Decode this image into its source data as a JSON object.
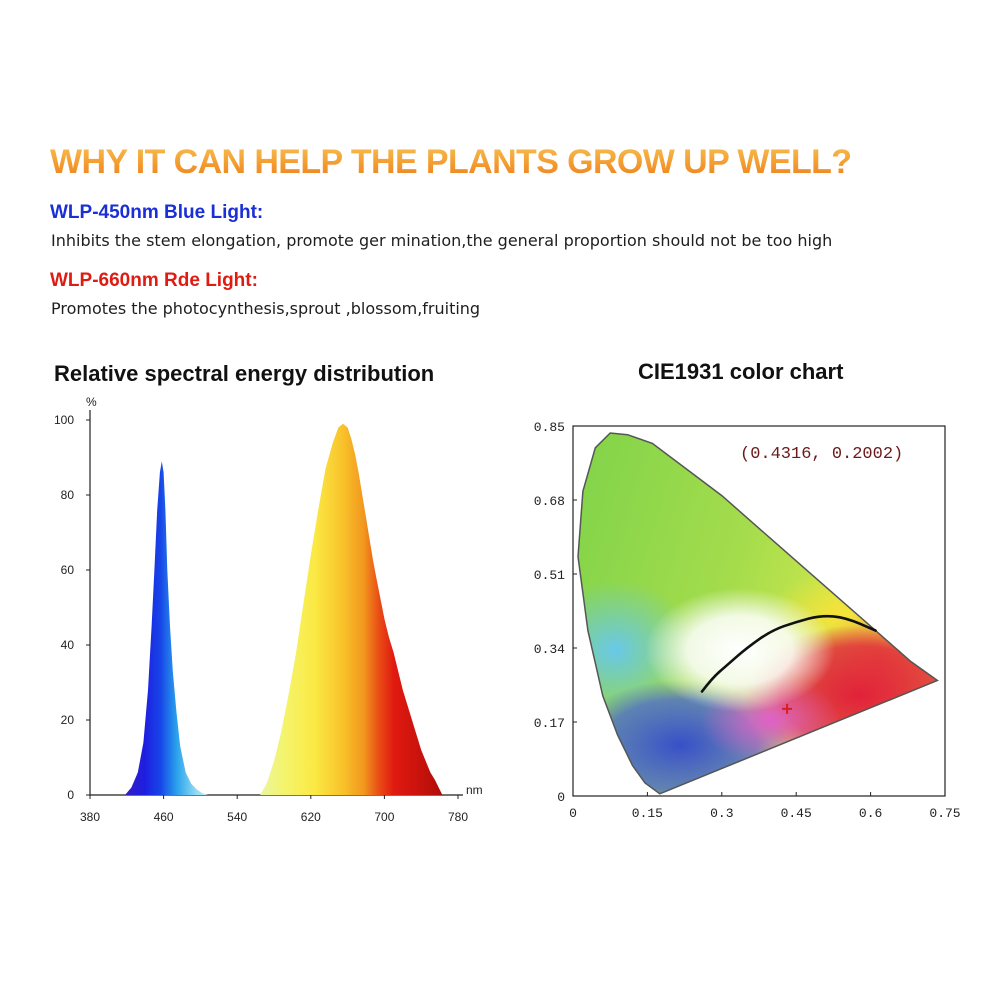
{
  "headline": "WHY IT CAN HELP THE PLANTS GROW UP WELL?",
  "blue_light": {
    "title": "WLP-450nm Blue Light:",
    "description": "Inhibits the stem elongation, promote ger mination,the general proportion should not be too high",
    "color": "#1a2fd6"
  },
  "red_light": {
    "title": "WLP-660nm Rde Light:",
    "description": "Promotes the photocynthesis,sprout ,blossom,fruiting",
    "color": "#e01b12"
  },
  "chart_data": [
    {
      "type": "area",
      "title": "Relative spectral energy distribution",
      "xlabel": "nm",
      "ylabel": "%",
      "xlim": [
        380,
        780
      ],
      "ylim": [
        0,
        100
      ],
      "x_ticks": [
        "380",
        "460",
        "540",
        "620",
        "700",
        "780"
      ],
      "y_ticks": [
        "0",
        "20",
        "40",
        "60",
        "80",
        "100"
      ],
      "grid": false,
      "series": [
        {
          "x": [
            418,
            425,
            432,
            438,
            443,
            447,
            450,
            453,
            456,
            458,
            460,
            462,
            464,
            467,
            470,
            474,
            478,
            484,
            490,
            496,
            502,
            508
          ],
          "y": [
            0,
            2,
            6,
            14,
            28,
            45,
            60,
            76,
            86,
            89,
            86,
            76,
            60,
            45,
            33,
            22,
            13,
            6,
            3,
            1.5,
            0.5,
            0
          ]
        },
        {
          "x": [
            565,
            572,
            580,
            588,
            596,
            604,
            612,
            620,
            628,
            636,
            644,
            650,
            655,
            660,
            664,
            668,
            672,
            676,
            680,
            684,
            688,
            692,
            696,
            700,
            705,
            710,
            715,
            720,
            725,
            730,
            735,
            740,
            745,
            750,
            755,
            760,
            763
          ],
          "y": [
            0,
            3,
            9,
            17,
            27,
            38,
            51,
            64,
            76,
            87,
            94,
            98,
            99,
            98,
            95,
            91,
            86,
            80,
            74,
            68,
            62,
            57,
            52,
            47,
            42,
            38,
            33,
            28,
            24,
            20,
            16,
            12,
            9,
            6,
            4,
            1.5,
            0
          ]
        }
      ]
    },
    {
      "type": "scatter",
      "title": "CIE1931 color chart",
      "xlim": [
        0,
        0.75
      ],
      "ylim": [
        0,
        0.85
      ],
      "x_ticks": [
        "0",
        "0.15",
        "0.3",
        "0.45",
        "0.6",
        "0.75"
      ],
      "y_ticks": [
        "0",
        "0.17",
        "0.34",
        "0.51",
        "0.68",
        "0.85"
      ],
      "annotation": "(0.4316, 0.2002)",
      "point": {
        "x": 0.4316,
        "y": 0.2002,
        "color": "#d81e1e"
      },
      "planckian_locus": [
        {
          "x": 0.26,
          "y": 0.24
        },
        {
          "x": 0.28,
          "y": 0.27
        },
        {
          "x": 0.31,
          "y": 0.3
        },
        {
          "x": 0.35,
          "y": 0.34
        },
        {
          "x": 0.4,
          "y": 0.38
        },
        {
          "x": 0.45,
          "y": 0.4
        },
        {
          "x": 0.5,
          "y": 0.415
        },
        {
          "x": 0.55,
          "y": 0.41
        },
        {
          "x": 0.61,
          "y": 0.38
        }
      ],
      "spectral_locus": [
        {
          "x": 0.175,
          "y": 0.005
        },
        {
          "x": 0.145,
          "y": 0.03
        },
        {
          "x": 0.12,
          "y": 0.07
        },
        {
          "x": 0.09,
          "y": 0.14
        },
        {
          "x": 0.06,
          "y": 0.23
        },
        {
          "x": 0.03,
          "y": 0.38
        },
        {
          "x": 0.01,
          "y": 0.55
        },
        {
          "x": 0.02,
          "y": 0.7
        },
        {
          "x": 0.045,
          "y": 0.8
        },
        {
          "x": 0.075,
          "y": 0.834
        },
        {
          "x": 0.11,
          "y": 0.83
        },
        {
          "x": 0.16,
          "y": 0.81
        },
        {
          "x": 0.23,
          "y": 0.75
        },
        {
          "x": 0.3,
          "y": 0.69
        },
        {
          "x": 0.4,
          "y": 0.59
        },
        {
          "x": 0.5,
          "y": 0.49
        },
        {
          "x": 0.6,
          "y": 0.39
        },
        {
          "x": 0.68,
          "y": 0.31
        },
        {
          "x": 0.7347,
          "y": 0.2653
        }
      ]
    }
  ]
}
